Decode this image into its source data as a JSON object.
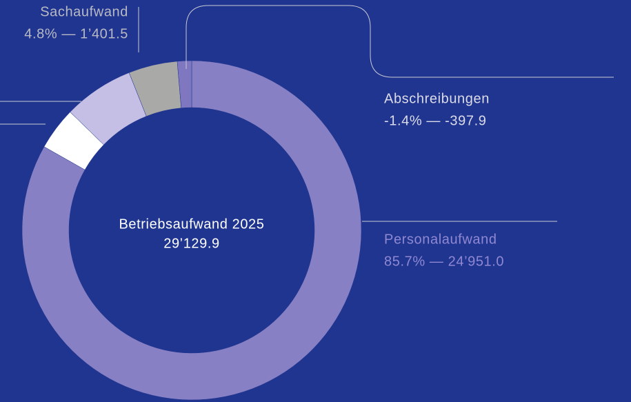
{
  "chart_data": {
    "type": "donut",
    "center_label": "Betriebsaufwand 2025",
    "total": {
      "value": 29129.9,
      "label": "29’129.9"
    },
    "categories": [
      "Personalaufwand",
      null,
      null,
      "Sachaufwand",
      "Abschreibungen"
    ],
    "values": [
      85.7,
      4.2,
      6.9,
      4.8,
      -1.4
    ],
    "value_labels": [
      "85.7% — 24’951.0",
      null,
      null,
      "4.8% — 1’401.5",
      "-1.4% — -397.9"
    ],
    "colors": [
      "#8880c4",
      "#ffffff",
      "#c5bfe6",
      "#a9aaa8",
      "#7f78c0"
    ],
    "label_colors": [
      "#9088d2",
      null,
      null,
      "#b9bac4",
      "#dcdce8"
    ]
  }
}
